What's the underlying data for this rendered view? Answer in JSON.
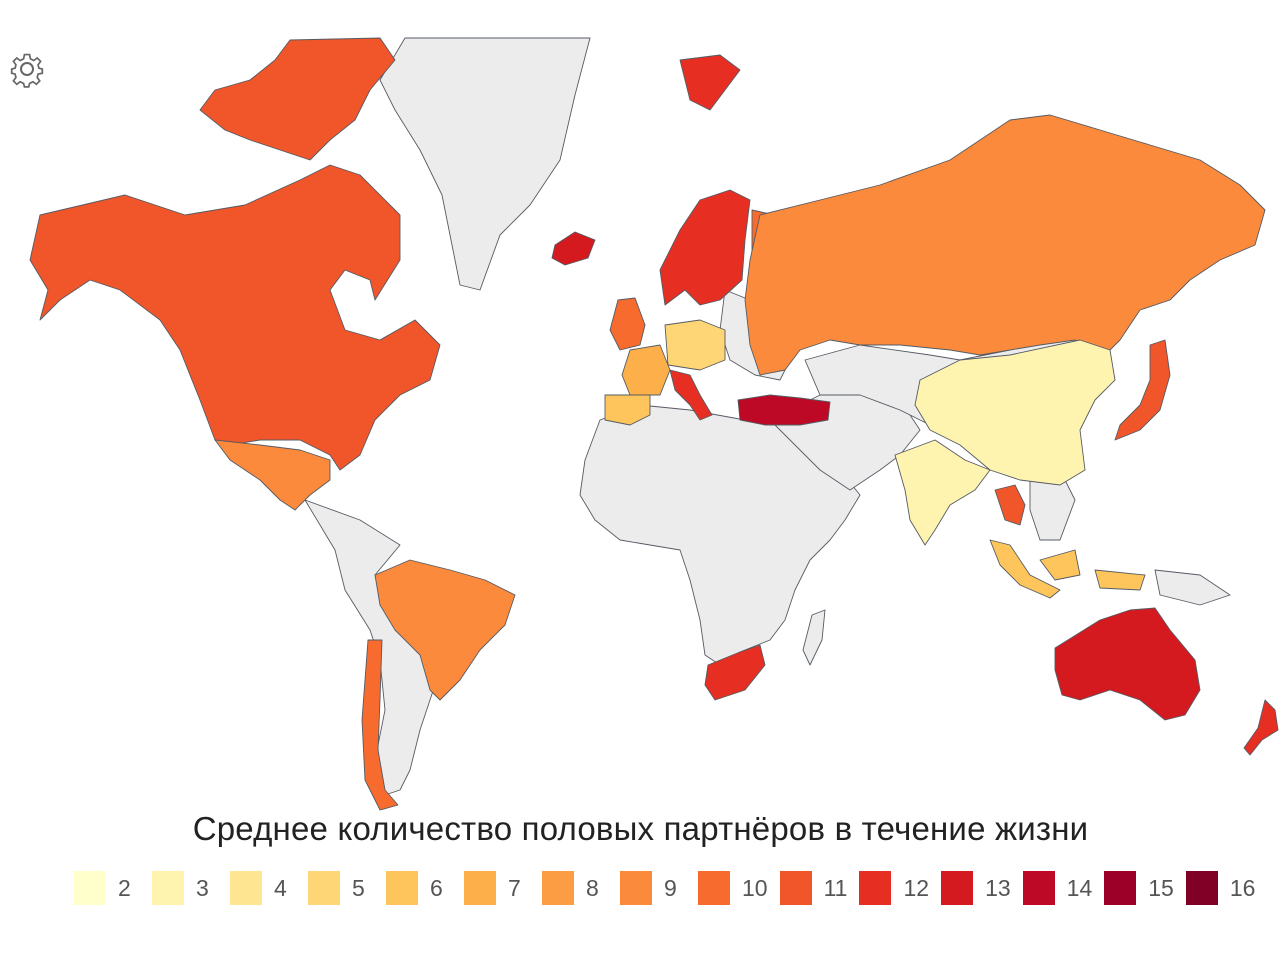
{
  "caption": "Среднее количество половых партнёров в течение жизни",
  "settings_icon": "gear-icon",
  "no_data_color": "#ececec",
  "legend": [
    {
      "value": "2",
      "color": "#ffffcc"
    },
    {
      "value": "3",
      "color": "#fff3b0"
    },
    {
      "value": "4",
      "color": "#fee591"
    },
    {
      "value": "5",
      "color": "#fed675"
    },
    {
      "value": "6",
      "color": "#fec55c"
    },
    {
      "value": "7",
      "color": "#fdaf4a"
    },
    {
      "value": "8",
      "color": "#fd9d43"
    },
    {
      "value": "9",
      "color": "#fc8a3c"
    },
    {
      "value": "10",
      "color": "#f76b2f"
    },
    {
      "value": "11",
      "color": "#f1562a"
    },
    {
      "value": "12",
      "color": "#e62f22"
    },
    {
      "value": "13",
      "color": "#d41a1f"
    },
    {
      "value": "14",
      "color": "#bd0826"
    },
    {
      "value": "15",
      "color": "#9c0028"
    },
    {
      "value": "16",
      "color": "#800026"
    }
  ],
  "regions": [
    {
      "name": "Канада / США",
      "value": 11
    },
    {
      "name": "Мексика",
      "value": 9
    },
    {
      "name": "Бразилия",
      "value": 9
    },
    {
      "name": "Чили",
      "value": 10
    },
    {
      "name": "Гренландия",
      "value": null
    },
    {
      "name": "Исландия",
      "value": 13
    },
    {
      "name": "Скандинавия",
      "value": 12
    },
    {
      "name": "Финляндия",
      "value": 10
    },
    {
      "name": "Великобритания",
      "value": 10
    },
    {
      "name": "Франция",
      "value": 7
    },
    {
      "name": "Испания",
      "value": 6
    },
    {
      "name": "Германия",
      "value": 5
    },
    {
      "name": "Италия",
      "value": 12
    },
    {
      "name": "Россия",
      "value": 9
    },
    {
      "name": "Турция",
      "value": 14
    },
    {
      "name": "Китай",
      "value": 3
    },
    {
      "name": "Индия",
      "value": 3
    },
    {
      "name": "Таиланд",
      "value": 11
    },
    {
      "name": "Индонезия",
      "value": 6
    },
    {
      "name": "Япония",
      "value": 11
    },
    {
      "name": "ЮАР",
      "value": 12
    },
    {
      "name": "Австралия",
      "value": 13
    },
    {
      "name": "Новая Зеландия",
      "value": 12
    }
  ]
}
